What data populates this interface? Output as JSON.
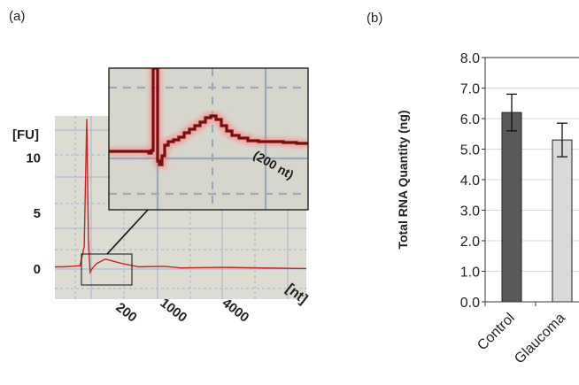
{
  "panels": {
    "a": {
      "label": "(a)"
    },
    "b": {
      "label": "(b)"
    }
  },
  "chart_data": [
    {
      "type": "line",
      "panel": "a",
      "ylabel": "[FU]",
      "xlabel": "[nt]",
      "y_ticks": [
        "0",
        "5",
        "10"
      ],
      "x_ticks": [
        "200",
        "1000",
        "4000"
      ],
      "inset_annotation": "(200 nt)",
      "series": [
        {
          "x": [
            0,
            0.1,
            0.2,
            0.3,
            0.35,
            0.38,
            0.4,
            0.42,
            0.45,
            0.5,
            0.6,
            0.8,
            1.0,
            1.3,
            1.5,
            2.0,
            3.0
          ],
          "y": [
            0.2,
            0.2,
            0.25,
            0.3,
            2.0,
            13.5,
            2.5,
            -0.3,
            0.1,
            0.5,
            0.9,
            0.5,
            0.2,
            0.25,
            0.1,
            0.15,
            0.05
          ]
        }
      ],
      "colors": {
        "line": "#cc2222",
        "grid": "#9fb3cf",
        "background": "#dddcd2"
      }
    },
    {
      "type": "bar",
      "panel": "b",
      "ylabel": "Total RNA Quantity (ng)",
      "categories": [
        "Control",
        "Glaucoma"
      ],
      "values": [
        6.2,
        5.3
      ],
      "errors": [
        0.6,
        0.55
      ],
      "ylim": [
        0,
        8.0
      ],
      "y_ticks": [
        "0.0",
        "1.0",
        "2.0",
        "3.0",
        "4.0",
        "5.0",
        "6.0",
        "7.0",
        "8.0"
      ],
      "colors": {
        "Control": "#595959",
        "Glaucoma": "#d9d9d9"
      }
    }
  ]
}
